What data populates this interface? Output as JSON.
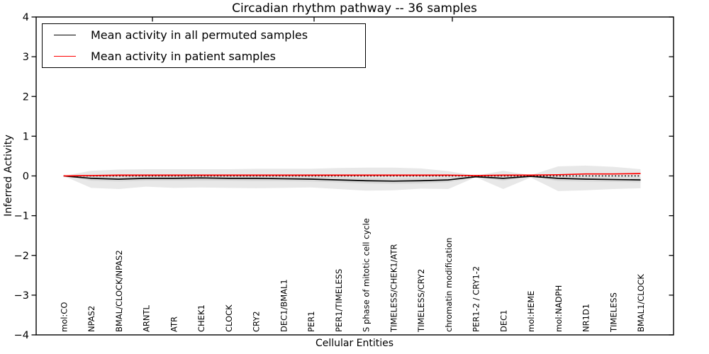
{
  "chart_data": {
    "type": "line",
    "title": "Circadian rhythm pathway -- 36 samples",
    "xlabel": "Cellular Entities",
    "ylabel": "Inferred Activity",
    "ylim": [
      -4,
      4
    ],
    "yticks": [
      4,
      3,
      2,
      1,
      0,
      -1,
      -2,
      -3,
      -4
    ],
    "ytick_labels": [
      "4",
      "3",
      "2",
      "1",
      "0",
      "−1",
      "−2",
      "−3",
      "−4"
    ],
    "grid": false,
    "legend_position": "upper-left",
    "categories": [
      "mol:CO",
      "NPAS2",
      "BMAL/CLOCK/NPAS2",
      "ARNTL",
      "ATR",
      "CHEK1",
      "CLOCK",
      "CRY2",
      "DEC1/BMAL1",
      "PER1",
      "PER1/TIMELESS",
      "S phase of mitotic cell cycle",
      "TIMELESS/CHEK1/ATR",
      "TIMELESS/CRY2",
      "chromatin modification",
      "PER1-2 / CRY1-2",
      "DEC1",
      "mol:HEME",
      "mol:NADPH",
      "NR1D1",
      "TIMELESS",
      "BMAL1/CLOCK"
    ],
    "series": [
      {
        "name": "Mean activity in all permuted samples",
        "color": "#000000",
        "style": "solid",
        "values": [
          0.0,
          -0.06,
          -0.08,
          -0.06,
          -0.06,
          -0.05,
          -0.06,
          -0.06,
          -0.07,
          -0.08,
          -0.1,
          -0.12,
          -0.13,
          -0.12,
          -0.1,
          -0.02,
          -0.06,
          -0.01,
          -0.06,
          -0.08,
          -0.09,
          -0.1
        ]
      },
      {
        "name": "Mean activity in patient samples",
        "color": "#ff0000",
        "style": "solid",
        "values": [
          0.0,
          0.01,
          0.02,
          0.02,
          0.02,
          0.02,
          0.02,
          0.02,
          0.02,
          0.02,
          0.02,
          0.02,
          0.02,
          0.02,
          0.02,
          0.01,
          0.02,
          0.02,
          0.03,
          0.05,
          0.05,
          0.06
        ]
      },
      {
        "name": "zero-baseline",
        "color": "#000000",
        "style": "dotted",
        "values": [
          0,
          0,
          0,
          0,
          0,
          0,
          0,
          0,
          0,
          0,
          0,
          0,
          0,
          0,
          0,
          0,
          0,
          0,
          0,
          0,
          0,
          0
        ]
      }
    ],
    "bands": [
      {
        "name": "permuted-range-outer",
        "color": "#e8e8e8",
        "top": [
          0.0,
          0.13,
          0.16,
          0.17,
          0.17,
          0.17,
          0.17,
          0.18,
          0.18,
          0.18,
          0.2,
          0.21,
          0.21,
          0.19,
          0.12,
          0.01,
          0.13,
          0.02,
          0.24,
          0.26,
          0.23,
          0.17
        ],
        "bottom": [
          0.0,
          -0.3,
          -0.33,
          -0.27,
          -0.3,
          -0.29,
          -0.3,
          -0.31,
          -0.3,
          -0.29,
          -0.33,
          -0.37,
          -0.36,
          -0.32,
          -0.33,
          -0.03,
          -0.33,
          -0.04,
          -0.38,
          -0.36,
          -0.33,
          -0.31
        ]
      },
      {
        "name": "permuted-range-inner",
        "color": "#d8d8d8",
        "top": [
          0.0,
          -0.01,
          -0.02,
          -0.01,
          -0.01,
          -0.01,
          -0.01,
          -0.01,
          -0.02,
          -0.02,
          -0.04,
          -0.05,
          -0.06,
          -0.05,
          -0.04,
          0.0,
          -0.02,
          0.0,
          -0.02,
          -0.03,
          -0.04,
          -0.04
        ],
        "bottom": [
          0.0,
          -0.12,
          -0.14,
          -0.12,
          -0.12,
          -0.12,
          -0.12,
          -0.13,
          -0.13,
          -0.14,
          -0.16,
          -0.19,
          -0.2,
          -0.19,
          -0.16,
          -0.03,
          -0.12,
          -0.02,
          -0.13,
          -0.14,
          -0.15,
          -0.16
        ]
      }
    ]
  },
  "legend": {
    "items": [
      {
        "label": "Mean activity in all permuted samples",
        "color": "#000000"
      },
      {
        "label": "Mean activity in patient samples",
        "color": "#ff0000"
      }
    ]
  }
}
